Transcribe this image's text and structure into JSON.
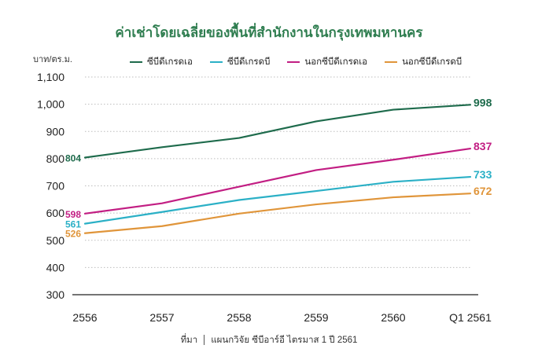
{
  "chart_data": {
    "type": "line",
    "title": "ค่าเช่าโดยเฉลี่ยของพื้นที่สำนักงานในกรุงเทพมหานคร",
    "ylabel": "บาท/ตร.ม.",
    "xlabel": "",
    "categories": [
      "2556",
      "2557",
      "2558",
      "2559",
      "2560",
      "Q1 2561"
    ],
    "ylim": [
      300,
      1100
    ],
    "yticks": [
      "300",
      "400",
      "500",
      "600",
      "700",
      "800",
      "900",
      "1,000",
      "1,100"
    ],
    "grid": "horizontal dotted",
    "legend_position": "top",
    "series": [
      {
        "name": "ซีบีดีเกรดเอ",
        "color": "#1e6b4c",
        "values": [
          804,
          842,
          876,
          937,
          980,
          998
        ],
        "start_label": "804",
        "end_label": "998"
      },
      {
        "name": "ซีบีดีเกรดบี",
        "color": "#2bb0c6",
        "values": [
          561,
          604,
          648,
          681,
          715,
          733
        ],
        "start_label": "561",
        "end_label": "733"
      },
      {
        "name": "นอกซีบีดีเกรดเอ",
        "color": "#c21e83",
        "values": [
          598,
          636,
          697,
          758,
          796,
          837
        ],
        "start_label": "598",
        "end_label": "837"
      },
      {
        "name": "นอกซีบีดีเกรดบี",
        "color": "#e0953a",
        "values": [
          526,
          552,
          598,
          632,
          658,
          672
        ],
        "start_label": "526",
        "end_label": "672"
      }
    ]
  },
  "source": {
    "label": "ที่มา",
    "text": "แผนกวิจัย ซีบีอาร์อี ไตรมาส 1 ปี 2561"
  }
}
